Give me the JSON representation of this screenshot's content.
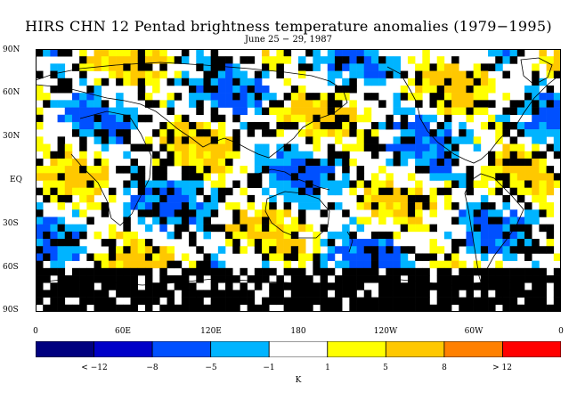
{
  "title": "HIRS CHN 12 Pentad brightness temperature anomalies (1979−1995)",
  "subtitle": "June 25 − 29, 1987",
  "lat_labels": [
    "90N",
    "60N",
    "30N",
    "EQ",
    "30S",
    "60S",
    "90S"
  ],
  "lon_labels": [
    "0",
    "60E",
    "120E",
    "180",
    "120W",
    "60W",
    "0"
  ],
  "colorbar": {
    "colors": [
      "#00007f",
      "#0000c8",
      "#0050ff",
      "#00b4ff",
      "#ffffff",
      "#ffff00",
      "#ffc800",
      "#ff8000",
      "#ff0000"
    ],
    "labels": [
      "< −12",
      "−8",
      "−5",
      "−1",
      "1",
      "5",
      "8",
      "> 12"
    ],
    "unit": "K"
  },
  "map_colors": {
    "missing": "#000000",
    "neutral": "#ffffff",
    "cold_light": "#00b4ff",
    "cold_mid": "#0050ff",
    "warm_light": "#ffff00",
    "warm_mid": "#ffc800",
    "coastline": "#000000"
  }
}
